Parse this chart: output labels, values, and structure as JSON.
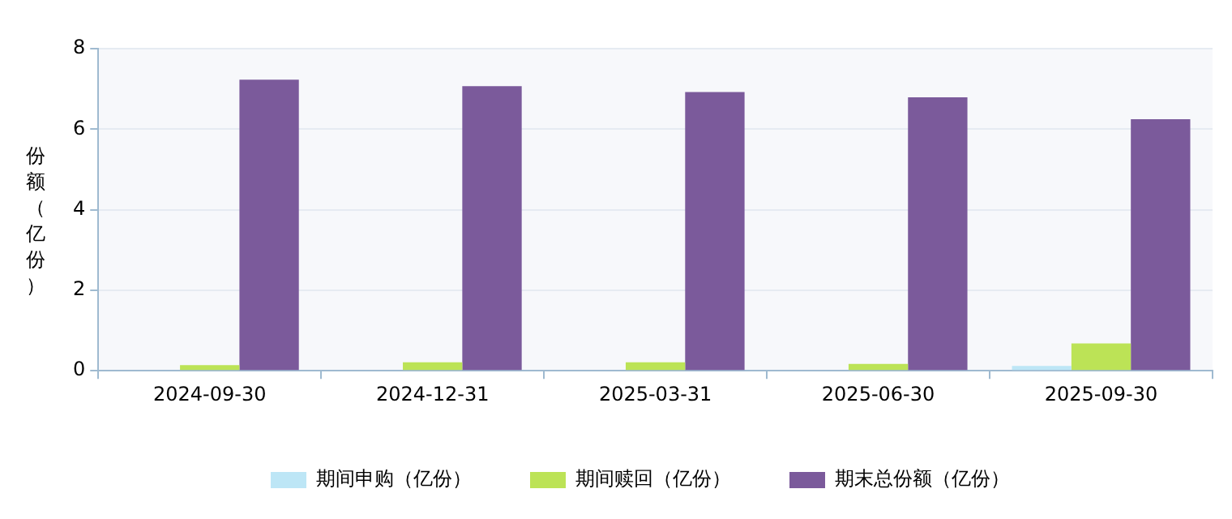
{
  "chart_data": {
    "type": "bar",
    "ylabel": "份额（亿份）",
    "categories": [
      "2024-09-30",
      "2024-12-31",
      "2025-03-31",
      "2025-06-30",
      "2025-09-30"
    ],
    "series": [
      {
        "name": "期间申购（亿份）",
        "color": "#bde6f6",
        "values": [
          null,
          null,
          null,
          null,
          0.12
        ]
      },
      {
        "name": "期间赎回（亿份）",
        "color": "#bce356",
        "values": [
          0.14,
          0.21,
          0.21,
          0.17,
          0.68
        ]
      },
      {
        "name": "期末总份额（亿份）",
        "color": "#7b5a9b",
        "values": [
          7.23,
          7.07,
          6.92,
          6.79,
          6.25
        ]
      }
    ],
    "ylim": [
      0,
      8
    ],
    "yticks": [
      0,
      2,
      4,
      6,
      8
    ],
    "grid": "y",
    "legend": "bottom"
  }
}
